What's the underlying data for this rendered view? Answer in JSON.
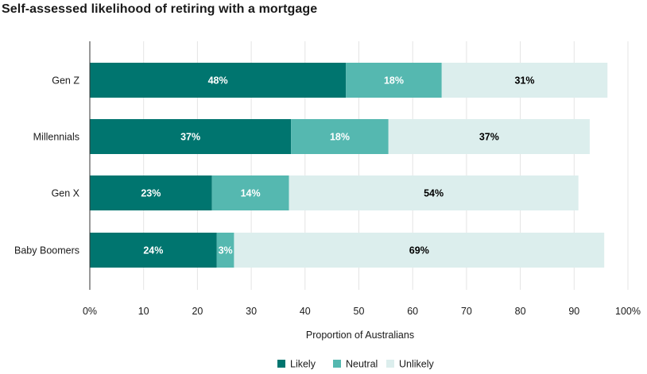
{
  "chart_data": {
    "type": "bar",
    "orientation": "horizontal",
    "stacked": true,
    "title": "Self-assessed likelihood of retiring with a mortgage",
    "xlabel": "Proportion of Australians",
    "ylabel": "",
    "xlim": [
      0,
      100
    ],
    "xticks": [
      "0%",
      "10",
      "20",
      "30",
      "40",
      "50",
      "60",
      "70",
      "80",
      "90",
      "100%"
    ],
    "grid": true,
    "legend_position": "bottom-center",
    "categories": [
      "Gen Z",
      "Millennials",
      "Gen X",
      "Baby Boomers"
    ],
    "series": [
      {
        "name": "Likely",
        "color": "#00756f",
        "label_color": "#ffffff",
        "values": [
          47.6,
          37.4,
          22.7,
          23.6
        ],
        "labels": [
          "48%",
          "37%",
          "23%",
          "24%"
        ]
      },
      {
        "name": "Neutral",
        "color": "#55b8b0",
        "label_color": "#ffffff",
        "values": [
          17.8,
          18.1,
          14.3,
          3.2
        ],
        "labels": [
          "18%",
          "18%",
          "14%",
          "3%"
        ]
      },
      {
        "name": "Unlikely",
        "color": "#dceeed",
        "label_color": "#000000",
        "values": [
          30.8,
          37.4,
          53.8,
          68.8
        ],
        "labels": [
          "31%",
          "37%",
          "54%",
          "69%"
        ]
      }
    ]
  }
}
